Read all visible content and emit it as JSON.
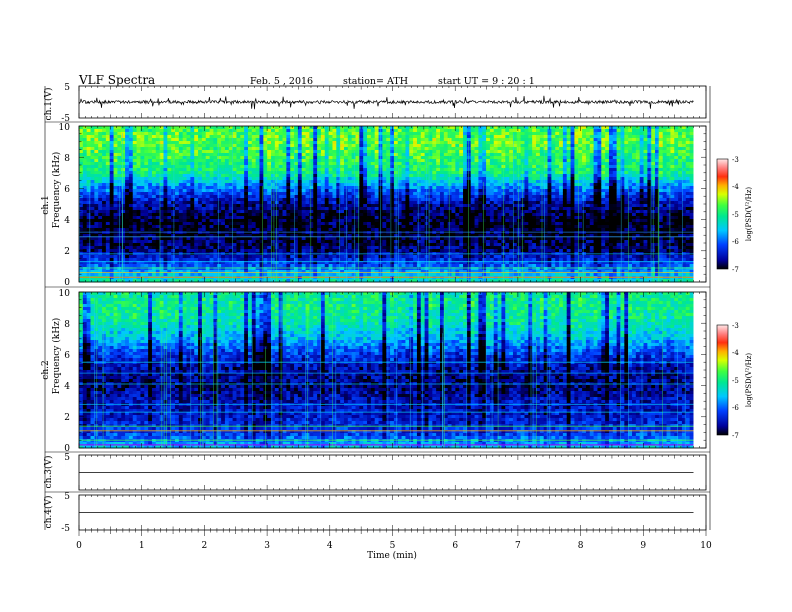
{
  "header": {
    "title": "VLF  Spectra",
    "date": "Feb. 5  , 2016",
    "station": "station= ATH",
    "start": "start  UT  =   9  : 20 : 1"
  },
  "colors": {
    "spectrum_low": "#000066",
    "spectrum_mid": "#00c8ff",
    "spectrum_high": "#ff3333",
    "trace": "#000000",
    "background": "#ffffff"
  },
  "chart_data": [
    {
      "type": "line",
      "panel": "ch1-waveform",
      "ylabel": "ch.1(V)",
      "ylim": [
        -5,
        5
      ],
      "y_ticks": [
        "5",
        "-5"
      ],
      "xlim": [
        0,
        10
      ],
      "series": [
        {
          "description_values_approx": "noisy waveform near 0 V with spikes up to about ±2 V",
          "mean": 0.0
        }
      ]
    },
    {
      "type": "heatmap",
      "panel": "ch1-spectrogram",
      "ylabel_top": "ch.1",
      "ylabel": "Frequency  (kHz)",
      "ylim": [
        0,
        10
      ],
      "y_ticks": [
        "0",
        "2",
        "4",
        "6",
        "8",
        "10"
      ],
      "xlim": [
        0,
        10
      ],
      "data_end_min": 9.8,
      "value_profile_by_freq_khz": {
        "freq": [
          0,
          1,
          2,
          3,
          4,
          5,
          6,
          7,
          8,
          9,
          10
        ],
        "log_psd": [
          -5.2,
          -6.0,
          -6.7,
          -6.9,
          -6.9,
          -6.6,
          -5.9,
          -5.0,
          -4.8,
          -4.6,
          -4.7
        ]
      },
      "colorbar": {
        "label": "log(PSD(V²/Hz)",
        "range": [
          -7,
          -3
        ],
        "ticks": [
          "-3",
          "-4",
          "-5",
          "-6",
          "-7"
        ]
      }
    },
    {
      "type": "heatmap",
      "panel": "ch2-spectrogram",
      "ylabel_top": "ch.2",
      "ylabel": "Frequency  (kHz)",
      "ylim": [
        0,
        10
      ],
      "y_ticks": [
        "0",
        "2",
        "4",
        "6",
        "8",
        "10"
      ],
      "xlim": [
        0,
        10
      ],
      "data_end_min": 9.8,
      "value_profile_by_freq_khz": {
        "freq": [
          0,
          1,
          2,
          3,
          4,
          5,
          6,
          7,
          8,
          9,
          10
        ],
        "log_psd": [
          -5.5,
          -6.2,
          -6.4,
          -6.5,
          -6.7,
          -6.6,
          -6.2,
          -5.6,
          -5.2,
          -5.0,
          -5.1
        ]
      },
      "colorbar": {
        "label": "log(PSD(V²/Hz)",
        "range": [
          -7,
          -3
        ],
        "ticks": [
          "-3",
          "-4",
          "-5",
          "-6",
          "-7"
        ]
      }
    },
    {
      "type": "line",
      "panel": "ch3-waveform",
      "ylabel": "ch.3(V)",
      "ylim": [
        -5,
        5
      ],
      "y_ticks": [
        "5"
      ],
      "xlim": [
        0,
        10
      ],
      "series": [
        {
          "values_flat": 0.0
        }
      ]
    },
    {
      "type": "line",
      "panel": "ch4-waveform",
      "ylabel": "ch.4(V)",
      "ylim": [
        -5,
        5
      ],
      "y_ticks": [
        "5",
        "-5"
      ],
      "xlim": [
        0,
        10
      ],
      "series": [
        {
          "values_flat": 0.0
        }
      ]
    }
  ],
  "x_axis": {
    "label": "Time  (min)",
    "range": [
      0,
      10
    ],
    "ticks": [
      "0",
      "1",
      "2",
      "3",
      "4",
      "5",
      "6",
      "7",
      "8",
      "9",
      "10"
    ]
  }
}
